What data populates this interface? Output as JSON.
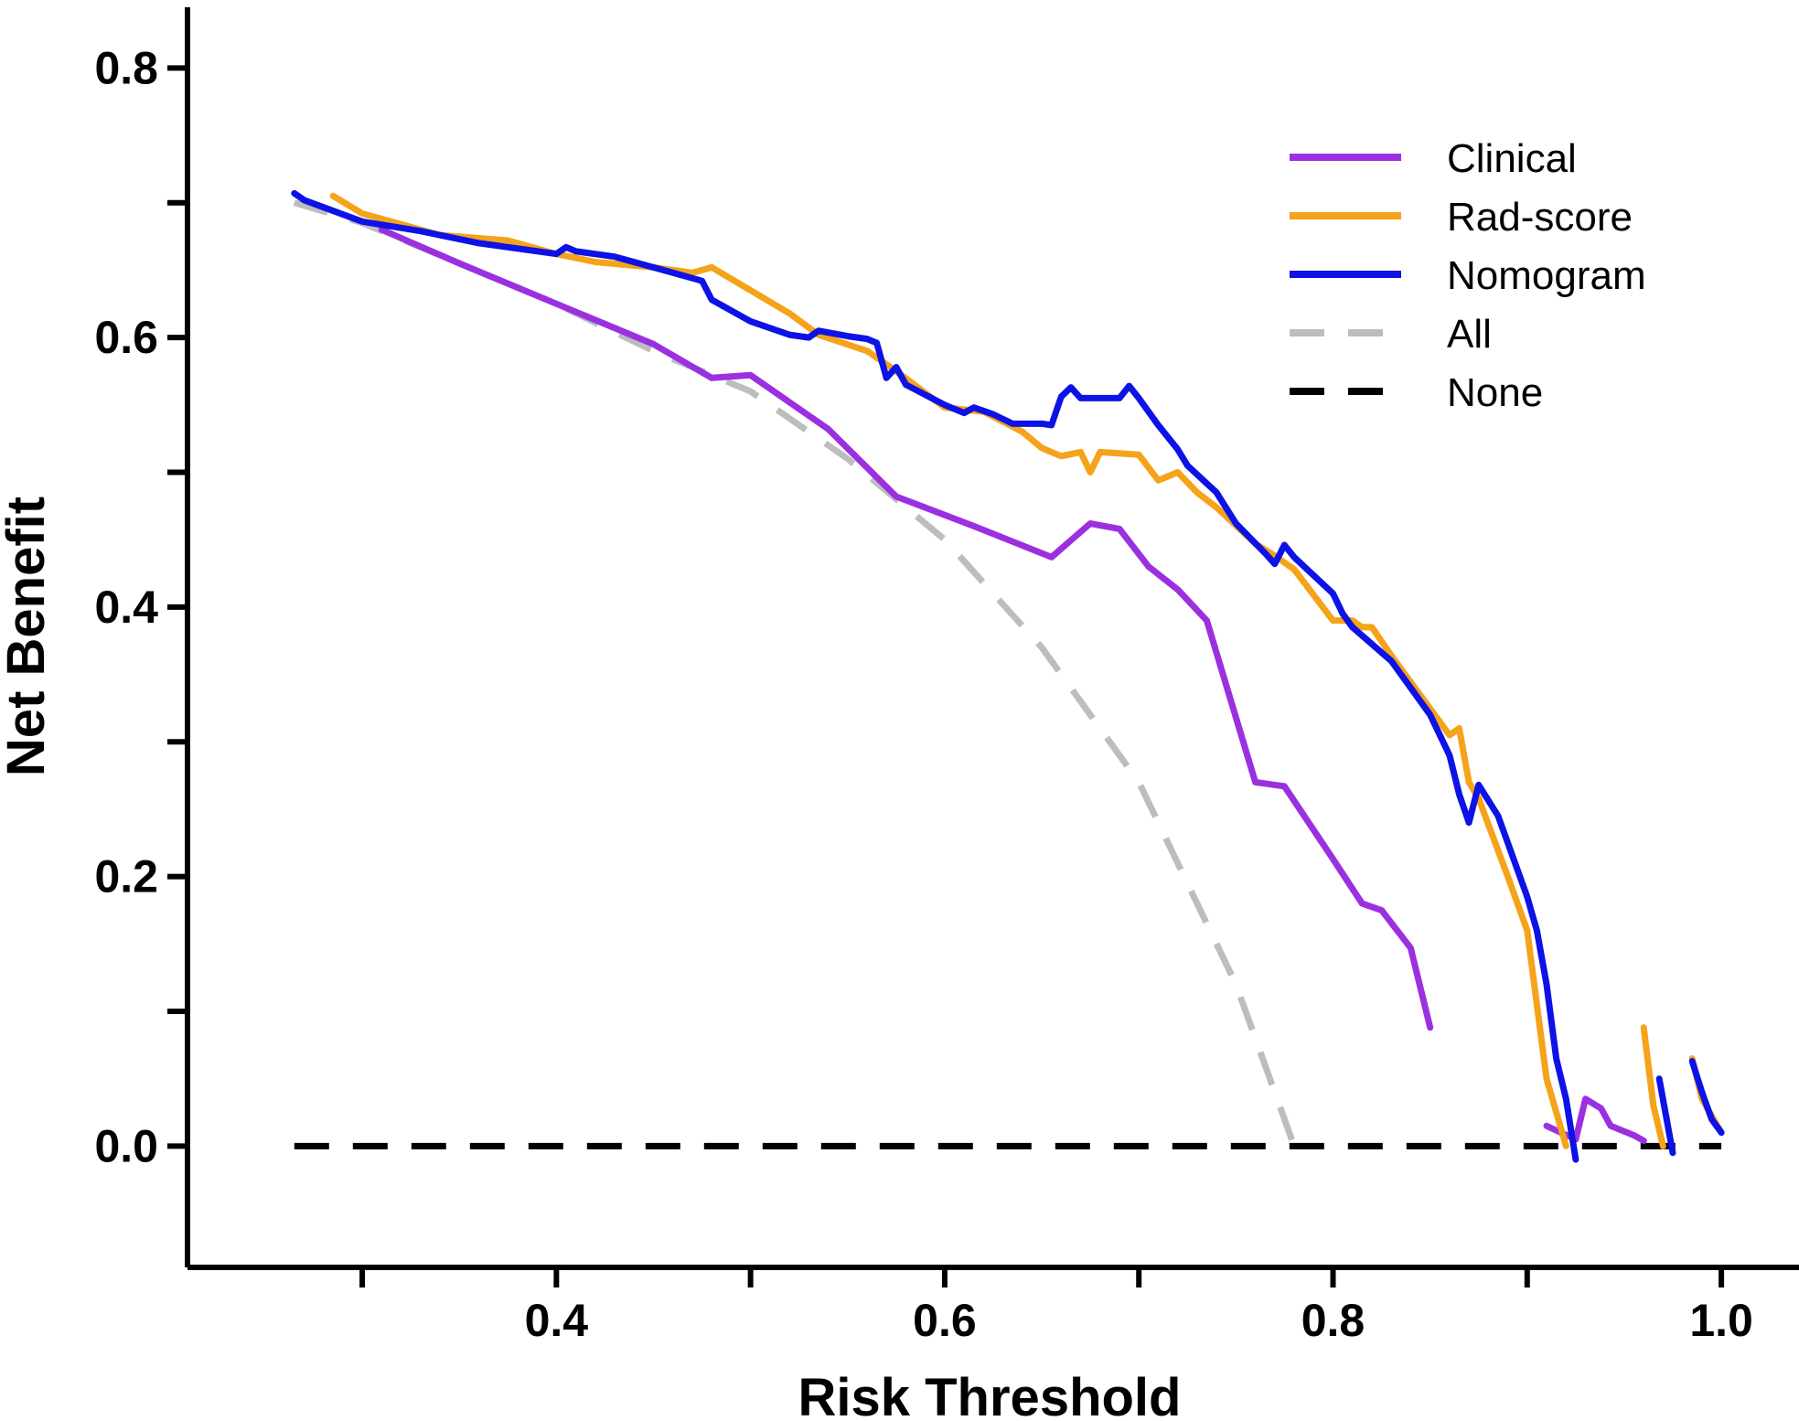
{
  "chart_data": {
    "type": "line",
    "title": "",
    "xlabel": "Risk Threshold",
    "ylabel": "Net Benefit",
    "xlim": [
      0.21,
      1.04
    ],
    "ylim": [
      -0.09,
      0.845
    ],
    "grid": false,
    "legend_position": "top-right",
    "x_ticks": [
      {
        "value": 0.3,
        "label": ""
      },
      {
        "value": 0.4,
        "label": "0.4"
      },
      {
        "value": 0.5,
        "label": ""
      },
      {
        "value": 0.6,
        "label": "0.6"
      },
      {
        "value": 0.7,
        "label": ""
      },
      {
        "value": 0.8,
        "label": "0.8"
      },
      {
        "value": 0.9,
        "label": ""
      },
      {
        "value": 1.0,
        "label": "1.0"
      }
    ],
    "y_ticks": [
      {
        "value": 0.0,
        "label": "0.0"
      },
      {
        "value": 0.1,
        "label": ""
      },
      {
        "value": 0.2,
        "label": "0.2"
      },
      {
        "value": 0.3,
        "label": ""
      },
      {
        "value": 0.4,
        "label": "0.4"
      },
      {
        "value": 0.5,
        "label": ""
      },
      {
        "value": 0.6,
        "label": "0.6"
      },
      {
        "value": 0.7,
        "label": ""
      },
      {
        "value": 0.8,
        "label": "0.8"
      }
    ],
    "series": [
      {
        "name": "Clinical",
        "color": "#9b30e0",
        "dash": "solid",
        "segments": [
          [
            [
              0.31,
              0.68
            ],
            [
              0.35,
              0.655
            ],
            [
              0.4,
              0.625
            ],
            [
              0.45,
              0.595
            ],
            [
              0.48,
              0.57
            ],
            [
              0.5,
              0.572
            ],
            [
              0.54,
              0.532
            ],
            [
              0.575,
              0.482
            ],
            [
              0.615,
              0.46
            ],
            [
              0.655,
              0.437
            ],
            [
              0.675,
              0.462
            ],
            [
              0.69,
              0.458
            ],
            [
              0.705,
              0.43
            ],
            [
              0.72,
              0.413
            ],
            [
              0.735,
              0.39
            ],
            [
              0.76,
              0.27
            ],
            [
              0.775,
              0.267
            ],
            [
              0.8,
              0.213
            ],
            [
              0.815,
              0.18
            ],
            [
              0.825,
              0.175
            ],
            [
              0.84,
              0.147
            ],
            [
              0.85,
              0.088
            ]
          ],
          [
            [
              0.91,
              0.015
            ],
            [
              0.925,
              0.005
            ],
            [
              0.93,
              0.035
            ],
            [
              0.938,
              0.028
            ],
            [
              0.943,
              0.015
            ],
            [
              0.955,
              0.008
            ],
            [
              0.96,
              0.004
            ]
          ]
        ]
      },
      {
        "name": "Rad-score",
        "color": "#f5a31a",
        "dash": "solid",
        "segments": [
          [
            [
              0.285,
              0.705
            ],
            [
              0.3,
              0.692
            ],
            [
              0.34,
              0.676
            ],
            [
              0.375,
              0.672
            ],
            [
              0.4,
              0.662
            ],
            [
              0.42,
              0.656
            ],
            [
              0.45,
              0.652
            ],
            [
              0.47,
              0.648
            ],
            [
              0.48,
              0.652
            ],
            [
              0.5,
              0.635
            ],
            [
              0.52,
              0.618
            ],
            [
              0.535,
              0.602
            ],
            [
              0.56,
              0.59
            ],
            [
              0.575,
              0.575
            ],
            [
              0.6,
              0.548
            ],
            [
              0.62,
              0.545
            ],
            [
              0.64,
              0.53
            ],
            [
              0.65,
              0.518
            ],
            [
              0.66,
              0.512
            ],
            [
              0.67,
              0.515
            ],
            [
              0.675,
              0.5
            ],
            [
              0.68,
              0.515
            ],
            [
              0.7,
              0.513
            ],
            [
              0.71,
              0.494
            ],
            [
              0.72,
              0.5
            ],
            [
              0.73,
              0.485
            ],
            [
              0.74,
              0.474
            ],
            [
              0.76,
              0.447
            ],
            [
              0.77,
              0.438
            ],
            [
              0.78,
              0.428
            ],
            [
              0.8,
              0.39
            ],
            [
              0.81,
              0.39
            ],
            [
              0.815,
              0.385
            ],
            [
              0.82,
              0.385
            ],
            [
              0.83,
              0.364
            ],
            [
              0.86,
              0.305
            ],
            [
              0.865,
              0.31
            ],
            [
              0.87,
              0.27
            ],
            [
              0.875,
              0.258
            ],
            [
              0.89,
              0.2
            ],
            [
              0.9,
              0.16
            ],
            [
              0.91,
              0.05
            ],
            [
              0.92,
              0.0
            ]
          ],
          [
            [
              0.96,
              0.088
            ],
            [
              0.965,
              0.03
            ],
            [
              0.97,
              0.0
            ]
          ],
          [
            [
              0.985,
              0.065
            ],
            [
              0.99,
              0.035
            ],
            [
              1.0,
              0.01
            ]
          ]
        ]
      },
      {
        "name": "Nomogram",
        "color": "#0d12e6",
        "dash": "solid",
        "segments": [
          [
            [
              0.265,
              0.707
            ],
            [
              0.27,
              0.702
            ],
            [
              0.3,
              0.686
            ],
            [
              0.33,
              0.679
            ],
            [
              0.36,
              0.67
            ],
            [
              0.4,
              0.662
            ],
            [
              0.405,
              0.667
            ],
            [
              0.41,
              0.664
            ],
            [
              0.43,
              0.66
            ],
            [
              0.445,
              0.654
            ],
            [
              0.46,
              0.648
            ],
            [
              0.475,
              0.642
            ],
            [
              0.48,
              0.628
            ],
            [
              0.5,
              0.612
            ],
            [
              0.52,
              0.602
            ],
            [
              0.53,
              0.6
            ],
            [
              0.535,
              0.605
            ],
            [
              0.55,
              0.601
            ],
            [
              0.56,
              0.599
            ],
            [
              0.565,
              0.596
            ],
            [
              0.57,
              0.57
            ],
            [
              0.575,
              0.578
            ],
            [
              0.58,
              0.565
            ],
            [
              0.6,
              0.55
            ],
            [
              0.61,
              0.544
            ],
            [
              0.615,
              0.548
            ],
            [
              0.625,
              0.543
            ],
            [
              0.635,
              0.536
            ],
            [
              0.65,
              0.536
            ],
            [
              0.655,
              0.535
            ],
            [
              0.66,
              0.556
            ],
            [
              0.665,
              0.563
            ],
            [
              0.67,
              0.555
            ],
            [
              0.69,
              0.555
            ],
            [
              0.695,
              0.564
            ],
            [
              0.7,
              0.555
            ],
            [
              0.71,
              0.535
            ],
            [
              0.72,
              0.517
            ],
            [
              0.725,
              0.505
            ],
            [
              0.74,
              0.485
            ],
            [
              0.75,
              0.462
            ],
            [
              0.765,
              0.44
            ],
            [
              0.77,
              0.432
            ],
            [
              0.775,
              0.446
            ],
            [
              0.78,
              0.437
            ],
            [
              0.8,
              0.41
            ],
            [
              0.805,
              0.395
            ],
            [
              0.81,
              0.385
            ],
            [
              0.83,
              0.36
            ],
            [
              0.85,
              0.32
            ],
            [
              0.86,
              0.29
            ],
            [
              0.865,
              0.261
            ],
            [
              0.87,
              0.24
            ],
            [
              0.875,
              0.268
            ],
            [
              0.885,
              0.245
            ],
            [
              0.9,
              0.185
            ],
            [
              0.905,
              0.16
            ],
            [
              0.91,
              0.12
            ],
            [
              0.915,
              0.065
            ],
            [
              0.92,
              0.035
            ],
            [
              0.925,
              -0.01
            ]
          ],
          [
            [
              0.968,
              0.05
            ],
            [
              0.975,
              -0.005
            ]
          ],
          [
            [
              0.985,
              0.063
            ],
            [
              0.99,
              0.04
            ],
            [
              0.995,
              0.02
            ],
            [
              1.0,
              0.01
            ]
          ]
        ]
      },
      {
        "name": "All",
        "color": "#bdbdbd",
        "dash": "dashed",
        "segments": [
          [
            [
              0.265,
              0.7
            ],
            [
              0.3,
              0.685
            ],
            [
              0.35,
              0.655
            ],
            [
              0.4,
              0.625
            ],
            [
              0.45,
              0.59
            ],
            [
              0.5,
              0.56
            ],
            [
              0.55,
              0.51
            ],
            [
              0.6,
              0.45
            ],
            [
              0.65,
              0.37
            ],
            [
              0.7,
              0.27
            ],
            [
              0.75,
              0.12
            ],
            [
              0.78,
              0.0
            ]
          ]
        ]
      },
      {
        "name": "None",
        "color": "#000000",
        "dash": "dashed",
        "segments": [
          [
            [
              0.265,
              0.0
            ],
            [
              1.0,
              0.0
            ]
          ]
        ]
      }
    ]
  }
}
